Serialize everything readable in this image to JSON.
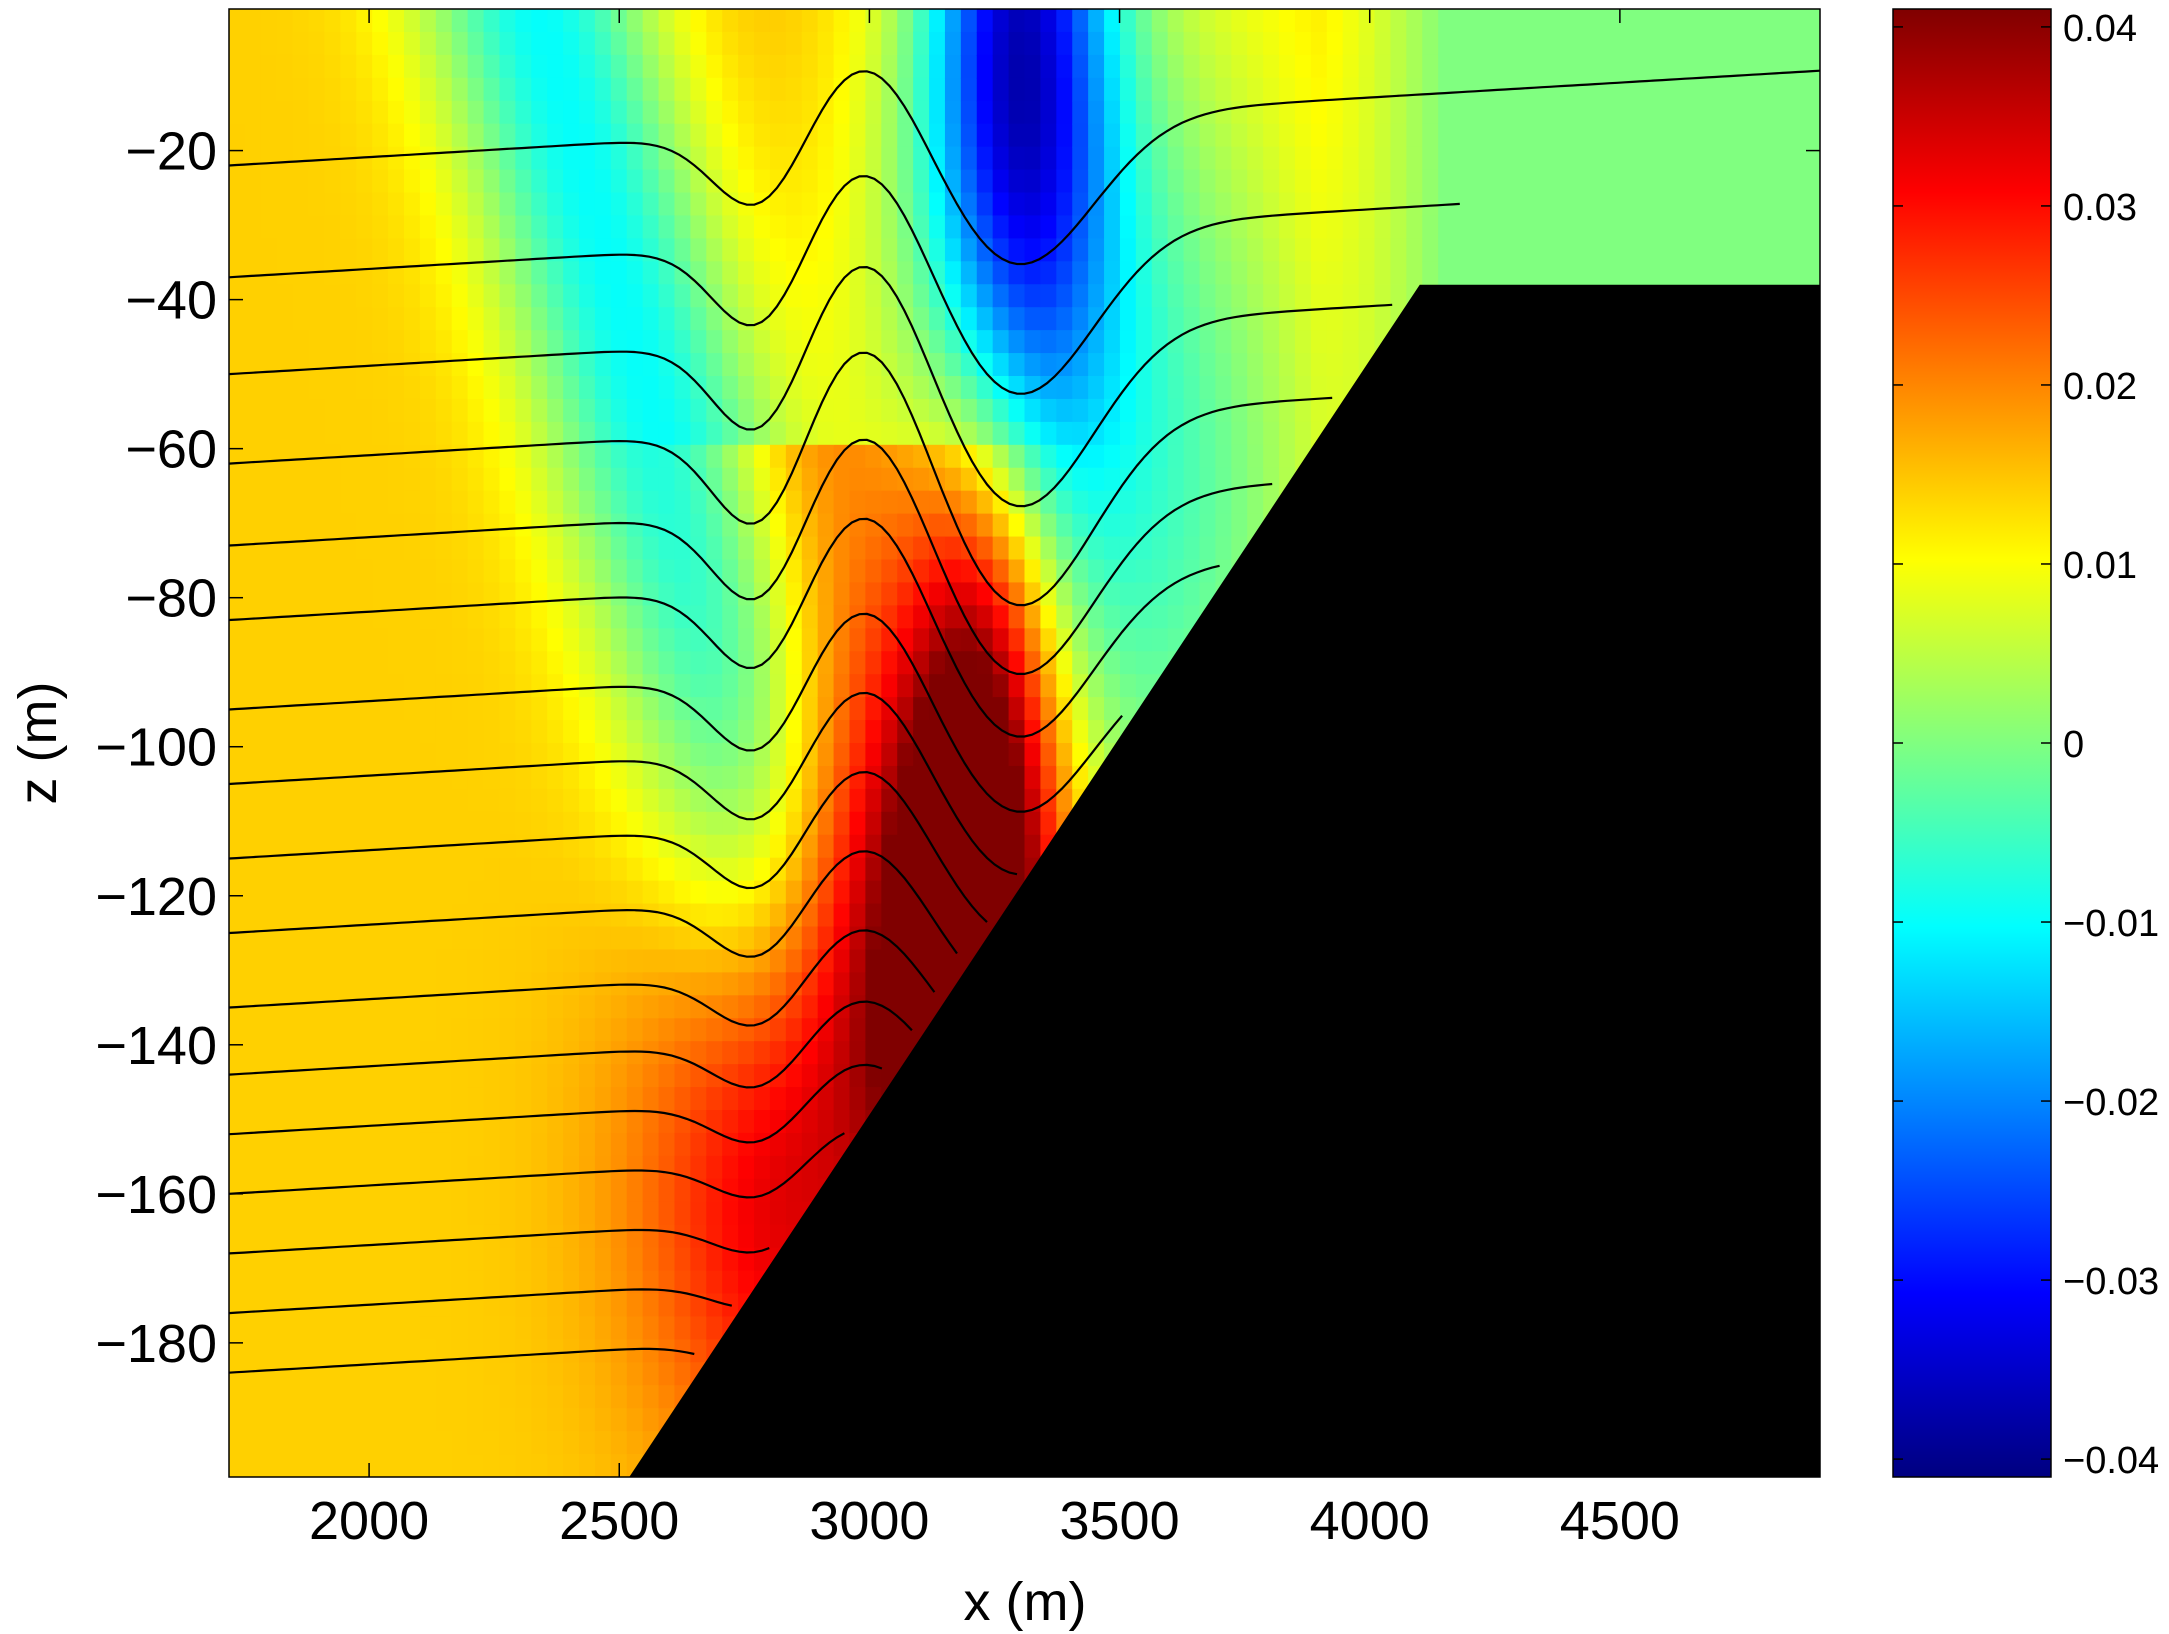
{
  "chart_data": {
    "type": "heatmap",
    "title": "",
    "xlabel": "x (m)",
    "ylabel": "z (m)",
    "xlim": [
      1720,
      4900
    ],
    "ylim": [
      -198,
      -1
    ],
    "x_ticks": [
      2000,
      2500,
      3000,
      3500,
      4000,
      4500
    ],
    "x_tick_labels": [
      "2000",
      "2500",
      "3000",
      "3500",
      "4000",
      "4500"
    ],
    "y_ticks": [
      -20,
      -40,
      -60,
      -80,
      -100,
      -120,
      -140,
      -160,
      -180
    ],
    "y_tick_labels": [
      "−20",
      "−40",
      "−60",
      "−80",
      "−100",
      "−120",
      "−140",
      "−160",
      "−180"
    ],
    "colormap": "jet",
    "clim": [
      -0.041,
      0.041
    ],
    "colorbar_ticks": [
      0.04,
      0.03,
      0.02,
      0.01,
      0,
      -0.01,
      -0.02,
      -0.03,
      -0.04
    ],
    "colorbar_tick_labels": [
      "0.04",
      "0.03",
      "0.02",
      "0.01",
      "0",
      "−0.01",
      "−0.02",
      "−0.03",
      "−0.04"
    ],
    "topography": {
      "description": "black seafloor slope",
      "points": [
        [
          2520,
          -198
        ],
        [
          4100,
          -38
        ],
        [
          4900,
          -38
        ]
      ]
    },
    "contour_levels_at_left_edge": [
      -22,
      -37,
      -50,
      -62,
      -73,
      -83,
      -95,
      -105,
      -115,
      -125,
      -135,
      -144,
      -152,
      -160,
      -168,
      -176,
      -184
    ],
    "features": [
      {
        "name": "negative anomaly",
        "x": 3300,
        "z": -10,
        "value": -0.04
      },
      {
        "name": "positive anomaly",
        "x": 3250,
        "z": -100,
        "value": 0.037
      },
      {
        "name": "positive anomaly lower",
        "x": 3050,
        "z": -140,
        "value": 0.03
      }
    ]
  },
  "colors": {
    "background": "#ffffff",
    "topography": "#000000",
    "contour": "#000000"
  }
}
